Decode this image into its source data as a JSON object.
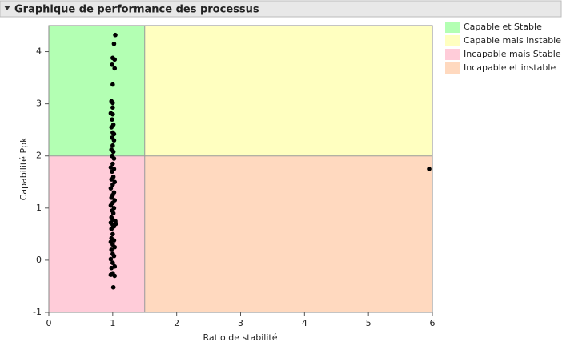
{
  "chart_data": {
    "type": "scatter",
    "title": "Graphique de performance des processus",
    "x_label": "Ratio de stabilité",
    "y_label": "Capabilité Ppk",
    "xlim": [
      0,
      6
    ],
    "ylim": [
      -1,
      4.5
    ],
    "xticks": [
      0,
      1,
      2,
      3,
      4,
      5,
      6
    ],
    "yticks": [
      -1,
      0,
      1,
      2,
      3,
      4
    ],
    "thresholds": {
      "x": 1.5,
      "y": 2
    },
    "regions": [
      {
        "name": "Capable et Stable",
        "color": "#b3ffb3"
      },
      {
        "name": "Capable mais Instable",
        "color": "#ffffc0"
      },
      {
        "name": "Incapable mais Stable",
        "color": "#ffccd9"
      },
      {
        "name": "Incapable et instable",
        "color": "#ffd9bf"
      }
    ],
    "point_color": "#000000",
    "x": [
      1.04,
      1.02,
      1.0,
      1.03,
      0.99,
      1.03,
      1.0,
      0.98,
      1.0,
      1.0,
      0.97,
      1.0,
      0.99,
      1.01,
      0.98,
      1.0,
      1.02,
      0.99,
      1.02,
      1.0,
      0.98,
      1.01,
      0.99,
      1.02,
      1.0,
      0.97,
      1.02,
      0.99,
      1.01,
      0.98,
      1.03,
      1.0,
      0.97,
      1.02,
      1.0,
      0.98,
      1.03,
      1.0,
      0.97,
      1.02,
      0.99,
      1.01,
      0.98,
      1.0,
      1.04,
      0.97,
      1.05,
      1.0,
      1.02,
      0.98,
      1.0,
      0.98,
      1.02,
      0.97,
      1.0,
      1.03,
      0.98,
      1.0,
      1.02,
      0.97,
      1.0,
      1.03,
      0.98,
      1.0,
      0.97,
      1.03,
      1.01,
      5.95
    ],
    "y": [
      4.32,
      4.15,
      3.88,
      3.85,
      3.75,
      3.68,
      3.37,
      3.05,
      3.02,
      2.93,
      2.82,
      2.8,
      2.7,
      2.6,
      2.55,
      2.45,
      2.42,
      2.35,
      2.3,
      2.2,
      2.12,
      2.08,
      2.0,
      1.95,
      1.85,
      1.78,
      1.75,
      1.7,
      1.6,
      1.55,
      1.5,
      1.45,
      1.38,
      1.3,
      1.25,
      1.2,
      1.15,
      1.1,
      1.05,
      1.0,
      0.95,
      0.9,
      0.82,
      0.78,
      0.75,
      0.72,
      0.7,
      0.68,
      0.65,
      0.6,
      0.5,
      0.42,
      0.38,
      0.35,
      0.3,
      0.25,
      0.2,
      0.12,
      0.08,
      0.02,
      -0.05,
      -0.12,
      -0.15,
      -0.25,
      -0.28,
      -0.3,
      -0.52,
      1.75
    ]
  }
}
